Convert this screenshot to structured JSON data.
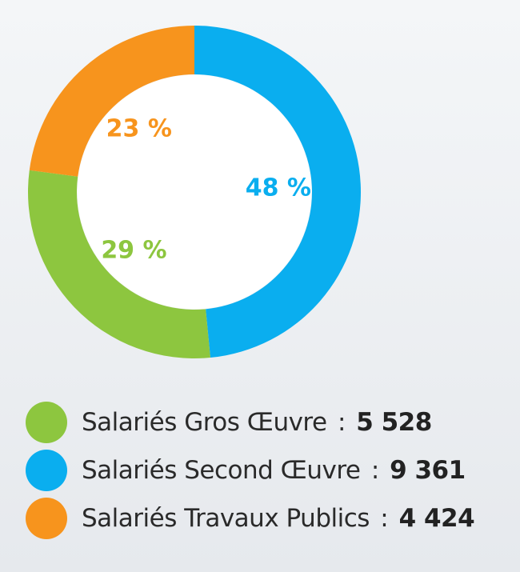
{
  "chart_data": {
    "type": "pie",
    "subtype": "donut",
    "series": [
      {
        "name": "Salariés Second Œuvre",
        "value": 9361,
        "percent": 48,
        "percent_label": "48 %",
        "value_label": "9 361",
        "color": "#0aaeef"
      },
      {
        "name": "Salariés Gros Œuvre",
        "value": 5528,
        "percent": 29,
        "percent_label": "29 %",
        "value_label": "5 528",
        "color": "#8dc63f"
      },
      {
        "name": "Salariés Travaux Publics",
        "value": 4424,
        "percent": 23,
        "percent_label": "23 %",
        "value_label": "4 424",
        "color": "#f7941d"
      }
    ],
    "legend": [
      {
        "label": "Salariés Gros Œuvre",
        "separator": ":",
        "value_label": "5 528",
        "color": "#8dc63f"
      },
      {
        "label": "Salariés Second Œuvre",
        "separator": ":",
        "value_label": "9 361",
        "color": "#0aaeef"
      },
      {
        "label": "Salariés Travaux Publics",
        "separator": ":",
        "value_label": "4 424",
        "color": "#f7941d"
      }
    ],
    "legend_position": "bottom"
  }
}
